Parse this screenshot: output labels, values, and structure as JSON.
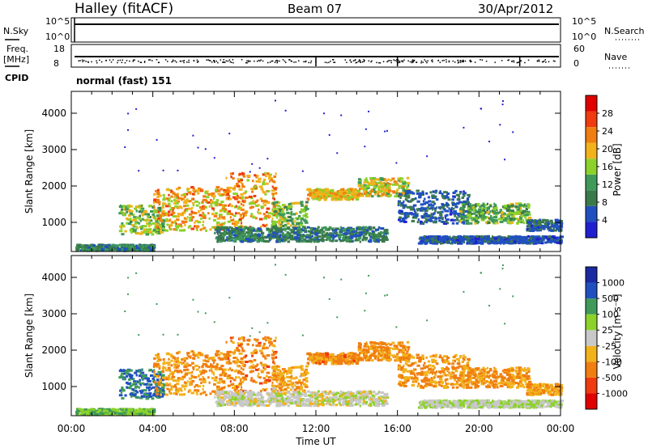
{
  "header": {
    "station": "Halley (fitACF)",
    "beam": "Beam 07",
    "date": "30/Apr/2012"
  },
  "summary": {
    "nsky_label": "N.Sky",
    "nsky_top": "10^5",
    "nsky_bottom": "10^0",
    "nsearch_label": "N.Search",
    "nsearch_top": "10^5",
    "nsearch_bottom": "10^0",
    "freq_label": "Freq.",
    "freq_unit": "[MHz]",
    "freq_top": "18",
    "freq_bottom": "8",
    "nave_label": "Nave",
    "nave_top": "60",
    "nave_bottom": "0",
    "cpid_label": "CPID",
    "cpid_text": "normal (fast) 151"
  },
  "colors": {
    "power": [
      "#2020d0",
      "#2050c0",
      "#3a7a4a",
      "#3f9a5a",
      "#8cd22a",
      "#f2b21a",
      "#f07e10",
      "#f03a10",
      "#e00000"
    ],
    "velocity": [
      "#e00000",
      "#f03a10",
      "#f07e10",
      "#f2b21a",
      "#c8c8c8",
      "#8cd22a",
      "#3f9a5a",
      "#2050c0",
      "#1a2aa0"
    ]
  },
  "chart_data": [
    {
      "type": "heatmap",
      "name": "power",
      "ylabel": "Slant Range [km]",
      "xlabel": "Time UT",
      "ylim": [
        200,
        4600
      ],
      "xlim_hours": [
        0,
        24
      ],
      "yticks": [
        "1000",
        "2000",
        "3000",
        "4000"
      ],
      "xticks": [
        "00:00",
        "04:00",
        "08:00",
        "12:00",
        "16:00",
        "20:00",
        "00:00"
      ],
      "colorbar_label": "Power [dB]",
      "colorbar_ticks": [
        "4",
        "8",
        "12",
        "16",
        "20",
        "24",
        "28"
      ],
      "colorbar_range": [
        0,
        32
      ]
    },
    {
      "type": "heatmap",
      "name": "velocity",
      "ylabel": "Slant Range [km]",
      "xlabel": "Time UT",
      "ylim": [
        200,
        4600
      ],
      "xlim_hours": [
        0,
        24
      ],
      "yticks": [
        "1000",
        "2000",
        "3000",
        "4000"
      ],
      "xticks": [
        "00:00",
        "04:00",
        "08:00",
        "12:00",
        "16:00",
        "20:00",
        "00:00"
      ],
      "colorbar_label": "Velocity [m s⁻¹]",
      "colorbar_ticks": [
        "1000",
        "500",
        "100",
        "25",
        "-25",
        "-100",
        "-500",
        "-1000"
      ]
    }
  ]
}
